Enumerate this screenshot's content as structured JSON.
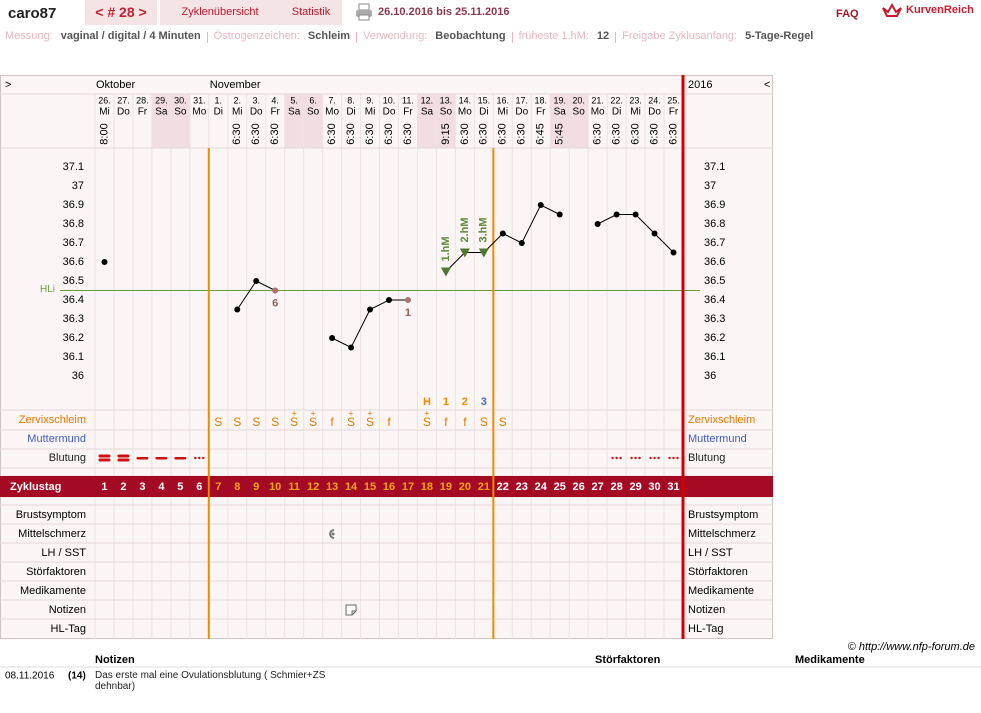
{
  "header": {
    "user": "caro87",
    "cycle_nav": "< # 28 >",
    "tabs": [
      "Zyklenübersicht",
      "Statistik"
    ],
    "date_range": "26.10.2016 bis 25.11.2016",
    "faq": "FAQ",
    "logo": "KurvenReich"
  },
  "settings": [
    {
      "label": "Messung:",
      "value": "vaginal / digital / 4 Minuten"
    },
    {
      "label": "Östrogenzeichen:",
      "value": "Schleim"
    },
    {
      "label": "Verwendung:",
      "value": "Beobachtung"
    },
    {
      "label": "früheste 1.hM:",
      "value": 12
    },
    {
      "label": "Freigabe Zyklusanfang:",
      "value": "5-Tage-Regel"
    }
  ],
  "chart": {
    "nav_left": ">",
    "nav_right": "<",
    "year": "2016",
    "months": [
      "Oktober",
      "November"
    ],
    "days": [
      {
        "date": "26.",
        "weekday": "Mi",
        "time": "8:00"
      },
      {
        "date": "27.",
        "weekday": "Do",
        "time": null
      },
      {
        "date": "28.",
        "weekday": "Fr",
        "time": null
      },
      {
        "date": "29.",
        "weekday": "Sa",
        "time": null
      },
      {
        "date": "30.",
        "weekday": "So",
        "time": null
      },
      {
        "date": "31.",
        "weekday": "Mo",
        "time": null
      },
      {
        "date": "1.",
        "weekday": "Di",
        "time": null
      },
      {
        "date": "2.",
        "weekday": "Mi",
        "time": "6:30"
      },
      {
        "date": "3.",
        "weekday": "Do",
        "time": "6:30"
      },
      {
        "date": "4.",
        "weekday": "Fr",
        "time": "6:30"
      },
      {
        "date": "5.",
        "weekday": "Sa",
        "time": null
      },
      {
        "date": "6.",
        "weekday": "So",
        "time": null
      },
      {
        "date": "7.",
        "weekday": "Mo",
        "time": "6:30"
      },
      {
        "date": "8.",
        "weekday": "Di",
        "time": "6:30"
      },
      {
        "date": "9.",
        "weekday": "Mi",
        "time": "6:30"
      },
      {
        "date": "10.",
        "weekday": "Do",
        "time": "6:30"
      },
      {
        "date": "11.",
        "weekday": "Fr",
        "time": "6:30"
      },
      {
        "date": "12.",
        "weekday": "Sa",
        "time": null
      },
      {
        "date": "13.",
        "weekday": "So",
        "time": "9:15"
      },
      {
        "date": "14.",
        "weekday": "Mo",
        "time": "6:30"
      },
      {
        "date": "15.",
        "weekday": "Di",
        "time": "6:30"
      },
      {
        "date": "16.",
        "weekday": "Mi",
        "time": "6:30"
      },
      {
        "date": "17.",
        "weekday": "Do",
        "time": "6:30"
      },
      {
        "date": "18.",
        "weekday": "Fr",
        "time": "6:45"
      },
      {
        "date": "19.",
        "weekday": "Sa",
        "time": "5:45"
      },
      {
        "date": "20.",
        "weekday": "So",
        "time": null
      },
      {
        "date": "21.",
        "weekday": "Mo",
        "time": "6:30"
      },
      {
        "date": "22.",
        "weekday": "Di",
        "time": "6:30"
      },
      {
        "date": "23.",
        "weekday": "Mi",
        "time": "6:30"
      },
      {
        "date": "24.",
        "weekday": "Do",
        "time": "6:30"
      },
      {
        "date": "25.",
        "weekday": "Fr",
        "time": "6:30"
      }
    ],
    "ylim": [
      35.8,
      37.2
    ],
    "yticks": [
      36,
      36.1,
      36.2,
      36.3,
      36.4,
      36.5,
      36.6,
      36.7,
      36.8,
      36.9,
      37,
      37.1
    ],
    "temperatures": [
      36.6,
      null,
      null,
      null,
      null,
      null,
      null,
      36.35,
      36.5,
      36.45,
      null,
      null,
      36.2,
      36.15,
      36.35,
      36.4,
      36.4,
      null,
      36.55,
      36.65,
      36.65,
      36.75,
      36.7,
      36.9,
      36.85,
      null,
      36.8,
      36.85,
      36.85,
      36.75,
      36.65
    ],
    "point_notes": [
      null,
      null,
      null,
      null,
      null,
      null,
      null,
      null,
      null,
      "6",
      null,
      null,
      null,
      null,
      null,
      null,
      "1",
      null,
      null,
      null,
      null,
      null,
      null,
      null,
      null,
      null,
      null,
      null,
      null,
      null,
      null
    ],
    "hm_labels": [
      null,
      null,
      null,
      null,
      null,
      null,
      null,
      null,
      null,
      null,
      null,
      null,
      null,
      null,
      null,
      null,
      null,
      null,
      "1.hM",
      "2.hM",
      "3.hM",
      null,
      null,
      null,
      null,
      null,
      null,
      null,
      null,
      null,
      null
    ],
    "coverline": {
      "label": "HLi",
      "value": 36.45
    },
    "mucus_eval": [
      null,
      null,
      null,
      null,
      null,
      null,
      null,
      null,
      null,
      null,
      null,
      null,
      null,
      null,
      null,
      null,
      null,
      "H",
      "1",
      "2",
      "3",
      null,
      null,
      null,
      null,
      null,
      null,
      null,
      null,
      null,
      null
    ],
    "mucus": [
      null,
      null,
      null,
      null,
      null,
      null,
      "S",
      "S",
      "S",
      "S",
      "S",
      "S",
      "f",
      "S",
      "S",
      "f",
      null,
      "S",
      "f",
      "f",
      "S",
      "S",
      null,
      null,
      null,
      null,
      null,
      null,
      null,
      null,
      null
    ],
    "mucus_plus": [
      null,
      null,
      null,
      null,
      null,
      null,
      null,
      null,
      null,
      null,
      "+",
      "+",
      null,
      "+",
      "+",
      null,
      null,
      "+",
      null,
      null,
      null,
      null,
      null,
      null,
      null,
      null,
      null,
      null,
      null,
      null,
      null
    ],
    "bleeding": [
      "heavy",
      "heavy",
      "medium",
      "medium",
      "medium",
      "spotting",
      null,
      null,
      null,
      null,
      null,
      null,
      null,
      null,
      null,
      null,
      null,
      null,
      null,
      null,
      null,
      null,
      null,
      null,
      null,
      null,
      null,
      "spotting",
      "spotting",
      "spotting",
      "spotting"
    ],
    "observation_rows": [
      "Zervixschleim",
      "Muttermund",
      "Blutung"
    ],
    "cycle_day_label": "Zyklustag",
    "cycle_days": [
      1,
      2,
      3,
      4,
      5,
      6,
      7,
      8,
      9,
      10,
      11,
      12,
      13,
      14,
      15,
      16,
      17,
      18,
      19,
      20,
      21,
      22,
      23,
      24,
      25,
      26,
      27,
      28,
      29,
      30,
      31
    ],
    "fertile_window": [
      7,
      21
    ],
    "symptom_rows": [
      "Brustsymptom",
      "Mittelschmerz",
      "LH / SST",
      "Störfaktoren",
      "Medikamente",
      "Notizen",
      "HL-Tag"
    ],
    "mittelschmerz_day": 13,
    "note_day": 14
  },
  "footer": {
    "copyright": "© http://www.nfp-forum.de",
    "columns": [
      "Notizen",
      "Störfaktoren",
      "Medikamente"
    ],
    "rows": [
      {
        "date": "08.11.2016",
        "day": "(14)",
        "note": "Das erste mal eine Ovulationsblutung ( Schmier+ZS dehnbar)"
      }
    ]
  }
}
